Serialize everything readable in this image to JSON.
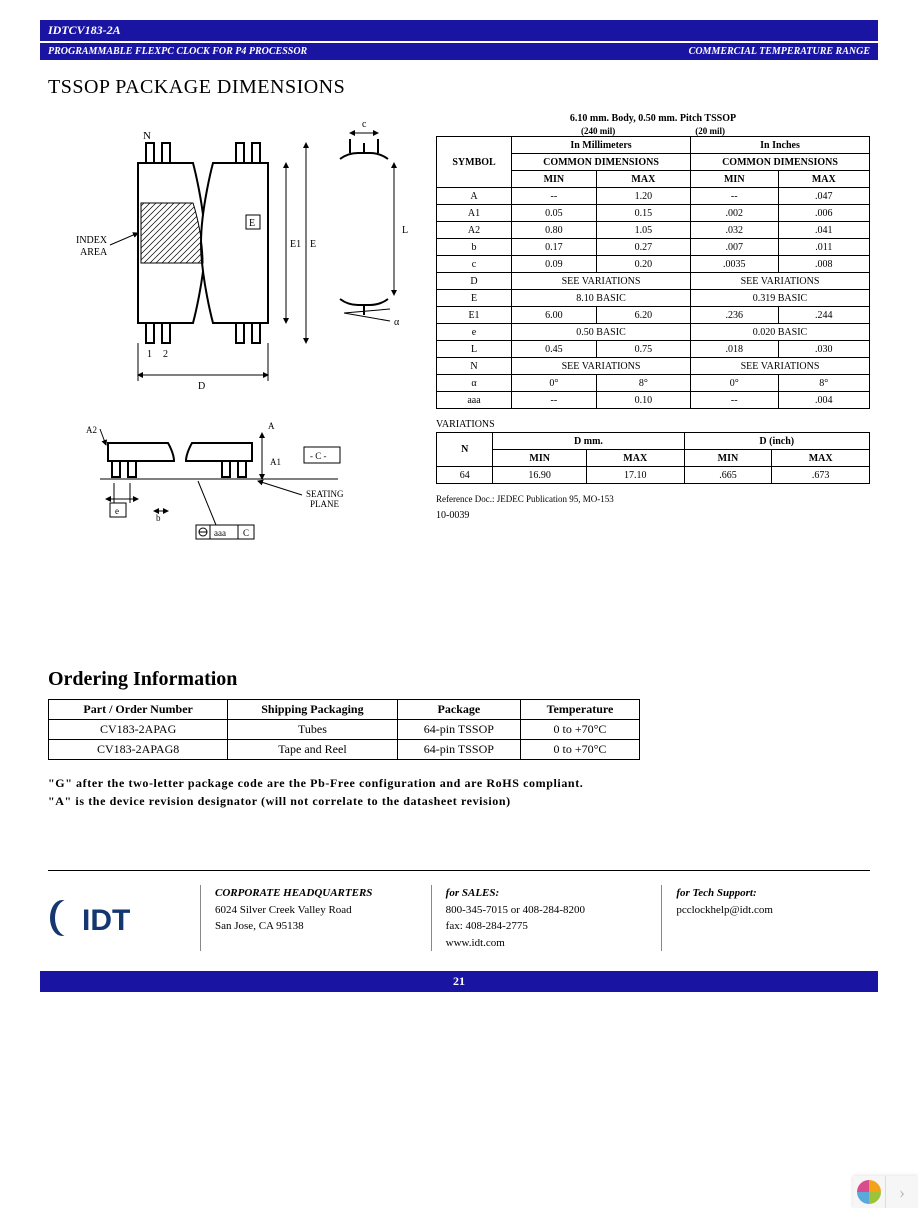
{
  "header": {
    "model": "IDTCV183-2A",
    "subtitle": "PROGRAMMABLE FLEXPC CLOCK FOR P4 PROCESSOR",
    "right": "COMMERCIAL TEMPERATURE RANGE"
  },
  "section_title": "TSSOP PACKAGE DIMENSIONS",
  "diagram": {
    "labels": {
      "N": "N",
      "index": "INDEX\nAREA",
      "E1": "E1",
      "E": "E",
      "D": "D",
      "c": "c",
      "L": "L",
      "alpha": "α",
      "A2": "A2",
      "A": "A",
      "A1": "A1",
      "Cbox": "- C -",
      "seating": "SEATING\nPLANE",
      "e": "e",
      "b": "b",
      "aaa": "aaa",
      "Cb": "C",
      "p1": "1",
      "p2": "2"
    }
  },
  "dim_caption": "6.10 mm. Body, 0.50 mm. Pitch TSSOP",
  "dim_sub": {
    "l": "(240 mil)",
    "r": "(20 mil)"
  },
  "dim_headers": {
    "sym": "SYMBOL",
    "mm": "In Millimeters",
    "in": "In Inches",
    "cd": "COMMON DIMENSIONS",
    "min": "MIN",
    "max": "MAX"
  },
  "dims": [
    {
      "s": "A",
      "mm_min": "--",
      "mm_max": "1.20",
      "in_min": "--",
      "in_max": ".047"
    },
    {
      "s": "A1",
      "mm_min": "0.05",
      "mm_max": "0.15",
      "in_min": ".002",
      "in_max": ".006"
    },
    {
      "s": "A2",
      "mm_min": "0.80",
      "mm_max": "1.05",
      "in_min": ".032",
      "in_max": ".041"
    },
    {
      "s": "b",
      "mm_min": "0.17",
      "mm_max": "0.27",
      "in_min": ".007",
      "in_max": ".011"
    },
    {
      "s": "c",
      "mm_min": "0.09",
      "mm_max": "0.20",
      "in_min": ".0035",
      "in_max": ".008"
    },
    {
      "s": "D",
      "mm_span": "SEE VARIATIONS",
      "in_span": "SEE VARIATIONS"
    },
    {
      "s": "E",
      "mm_span": "8.10 BASIC",
      "in_span": "0.319 BASIC"
    },
    {
      "s": "E1",
      "mm_min": "6.00",
      "mm_max": "6.20",
      "in_min": ".236",
      "in_max": ".244"
    },
    {
      "s": "e",
      "mm_span": "0.50 BASIC",
      "in_span": "0.020 BASIC"
    },
    {
      "s": "L",
      "mm_min": "0.45",
      "mm_max": "0.75",
      "in_min": ".018",
      "in_max": ".030"
    },
    {
      "s": "N",
      "mm_span": "SEE VARIATIONS",
      "in_span": "SEE VARIATIONS"
    },
    {
      "s": "α",
      "mm_min": "0°",
      "mm_max": "8°",
      "in_min": "0°",
      "in_max": "8°"
    },
    {
      "s": "aaa",
      "mm_min": "--",
      "mm_max": "0.10",
      "in_min": "--",
      "in_max": ".004"
    }
  ],
  "var_label": "VARIATIONS",
  "var_headers": {
    "N": "N",
    "Dmm": "D mm.",
    "Din": "D (inch)",
    "min": "MIN",
    "max": "MAX"
  },
  "variations": [
    {
      "N": "64",
      "dmm_min": "16.90",
      "dmm_max": "17.10",
      "din_min": ".665",
      "din_max": ".673"
    }
  ],
  "refdoc": "Reference Doc.:  JEDEC Publication 95,  MO-153",
  "drwcode": "10-0039",
  "order_title": "Ordering Information",
  "order_headers": [
    "Part / Order Number",
    "Shipping Packaging",
    "Package",
    "Temperature"
  ],
  "orders": [
    [
      "CV183-2APAG",
      "Tubes",
      "64-pin TSSOP",
      "0 to +70°C"
    ],
    [
      "CV183-2APAG8",
      "Tape and Reel",
      "64-pin TSSOP",
      "0 to +70°C"
    ]
  ],
  "note1": "\"G\"  after  the  two-letter package  code  are  the  Pb-Free  configuration  and  are  RoHS  compliant.",
  "note2": "\"A\" is the  device  revision designator (will not correlate  to the  datasheet revision)",
  "footer": {
    "hq_title": "CORPORATE HEADQUARTERS",
    "hq_l1": "6024 Silver Creek Valley Road",
    "hq_l2": "San Jose, CA 95138",
    "sales_title": "for SALES:",
    "sales_l1": "800-345-7015 or 408-284-8200",
    "sales_l2": "fax: 408-284-2775",
    "sales_l3": "www.idt.com",
    "tech_title": "for Tech Support:",
    "tech_l1": "pcclockhelp@idt.com"
  },
  "page_no": "21",
  "colors": {
    "blue": "#1a14a3",
    "logo_dark": "#14376f",
    "c1": "#d94c8e",
    "c2": "#f2a318",
    "c3": "#9fc23b",
    "c4": "#5aa9dd"
  }
}
